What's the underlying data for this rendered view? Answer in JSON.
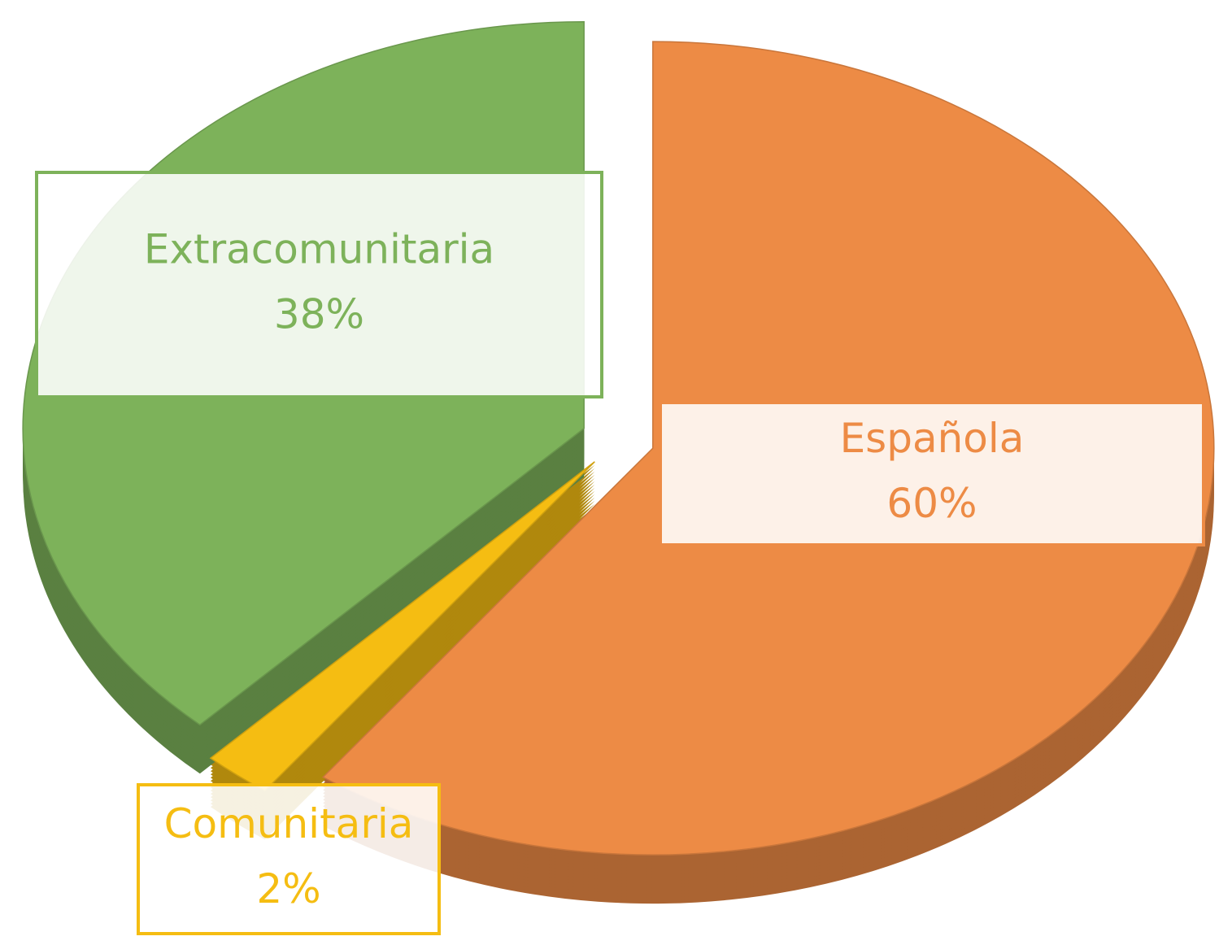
{
  "chart_data": {
    "type": "pie",
    "categories": [
      "Española",
      "Comunitaria",
      "Extracomunitaria"
    ],
    "values": [
      60,
      2,
      38
    ],
    "value_labels": [
      "60%",
      "2%",
      "38%"
    ],
    "colors": [
      "#ed8b45",
      "#f5bd12",
      "#7db25a"
    ],
    "start_angle": 0,
    "direction": "clockwise",
    "exploded": true,
    "three_d": true
  }
}
